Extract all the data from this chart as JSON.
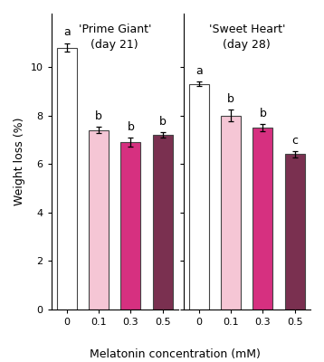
{
  "group1_label": "'Prime Giant'\n(day 21)",
  "group2_label": "'Sweet Heart'\n(day 28)",
  "concentrations": [
    "0",
    "0.1",
    "0.3",
    "0.5"
  ],
  "group1_values": [
    10.8,
    7.4,
    6.9,
    7.2
  ],
  "group1_errors": [
    0.18,
    0.12,
    0.18,
    0.1
  ],
  "group1_letters": [
    "a",
    "b",
    "b",
    "b"
  ],
  "group2_values": [
    9.3,
    8.0,
    7.5,
    6.4
  ],
  "group2_errors": [
    0.1,
    0.25,
    0.15,
    0.12
  ],
  "group2_letters": [
    "a",
    "b",
    "b",
    "c"
  ],
  "bar_colors": [
    "#ffffff",
    "#f5c6d5",
    "#d63080",
    "#7a3050"
  ],
  "bar_edgecolor": "#444444",
  "ylabel": "Weight loss (%)",
  "xlabel": "Melatonin concentration (mM)",
  "ylim_max": 12.2,
  "yticks": [
    0,
    2,
    4,
    6,
    8,
    10
  ],
  "background_color": "#ffffff",
  "letter_fontsize": 9,
  "axis_fontsize": 9,
  "tick_fontsize": 8,
  "group_label_fontsize": 9
}
